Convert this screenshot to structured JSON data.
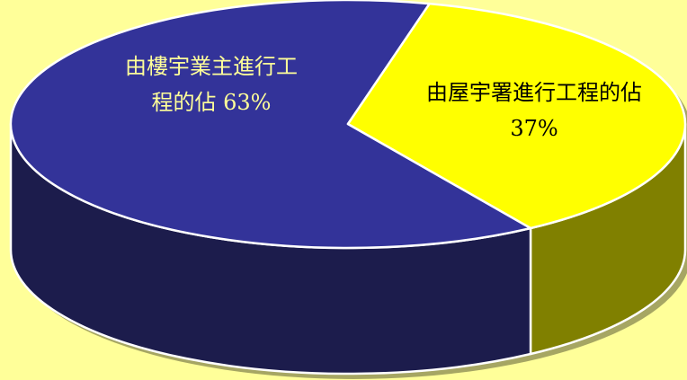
{
  "colors": {
    "background": "#FFFF99",
    "outline": "#FFFFFF"
  },
  "chart_data": {
    "type": "pie",
    "three_d": true,
    "slices": [
      {
        "label_lines": [
          "由樓宇業主進行工",
          "程的佔 63%"
        ],
        "value": 63,
        "color": "#333399",
        "side_color": "#1C1C4C",
        "label_color": "#FFFF99"
      },
      {
        "label_lines": [
          "由屋宇署進行工程的佔",
          "37%"
        ],
        "value": 37,
        "color": "#FFFF00",
        "side_color": "#808000",
        "label_color": "#000000"
      }
    ]
  }
}
